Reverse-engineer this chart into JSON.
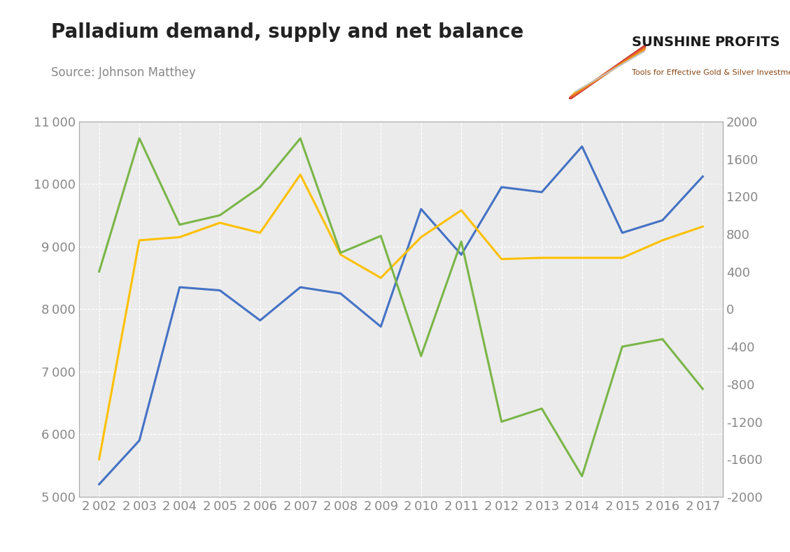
{
  "title": "Palladium demand, supply and net balance",
  "source": "Source: Johnson Matthey",
  "years": [
    2002,
    2003,
    2004,
    2005,
    2006,
    2007,
    2008,
    2009,
    2010,
    2011,
    2012,
    2013,
    2014,
    2015,
    2016,
    2017
  ],
  "demand": [
    5200,
    5900,
    8350,
    8300,
    7820,
    8350,
    8250,
    7720,
    9600,
    8870,
    9950,
    9870,
    10600,
    9220,
    9420,
    10120
  ],
  "supply": [
    5600,
    9100,
    9150,
    9380,
    9220,
    10150,
    8870,
    8500,
    9150,
    9580,
    8800,
    8820,
    8820,
    8820,
    9100,
    9320
  ],
  "net_balance": [
    400,
    1820,
    900,
    1000,
    1300,
    1820,
    600,
    780,
    -500,
    720,
    -1200,
    -1060,
    -1780,
    -400,
    -320,
    -850
  ],
  "demand_color": "#4472C4",
  "supply_color": "#FFC000",
  "net_balance_color": "#7AB648",
  "left_ylim": [
    5000,
    11000
  ],
  "right_ylim": [
    -2000,
    2000
  ],
  "left_yticks": [
    5000,
    6000,
    7000,
    8000,
    9000,
    10000,
    11000
  ],
  "right_yticks": [
    -2000,
    -1600,
    -1200,
    -800,
    -400,
    0,
    400,
    800,
    1200,
    1600,
    2000
  ],
  "plot_bg_color": "#EBEBEB",
  "fig_bg_color": "#FFFFFF",
  "line_width": 2.2,
  "grid_color": "#FFFFFF",
  "grid_linestyle": "--",
  "grid_linewidth": 0.8,
  "title_fontsize": 20,
  "source_fontsize": 12,
  "tick_fontsize": 13,
  "tick_color": "#888888",
  "spine_color": "#AAAAAA"
}
